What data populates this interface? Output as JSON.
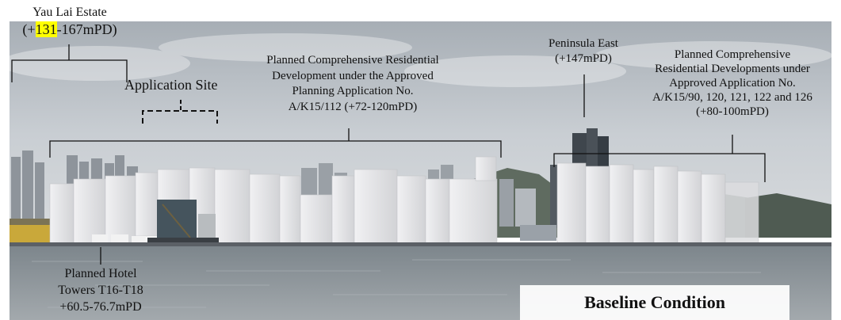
{
  "labels": {
    "yau_lai_name": "Yau Lai Estate",
    "yau_lai_open": "(+",
    "yau_lai_hl": "131",
    "yau_lai_rest": "-167mPD)",
    "application_site": "Application Site",
    "planned_res": [
      "Planned Comprehensive Residential",
      "Development under the Approved",
      "Planning Application No.",
      "A/K15/112 (+72-120mPD)"
    ],
    "peninsula": [
      "Peninsula East",
      "(+147mPD)"
    ],
    "planned_devs": [
      "Planned Comprehensive",
      "Residential Developments under",
      "Approved Application No.",
      "A/K15/90, 120, 121, 122 and 126",
      "(+80-100mPD)"
    ],
    "hotel": [
      "Planned Hotel",
      "Towers T16-T18",
      "+60.5-76.7mPD"
    ],
    "baseline": "Baseline Condition"
  },
  "colors": {
    "highlight": "#ffff00",
    "sky": "#cdd3d8",
    "water": "#8d969c",
    "building_white": "#e6e6e8"
  }
}
